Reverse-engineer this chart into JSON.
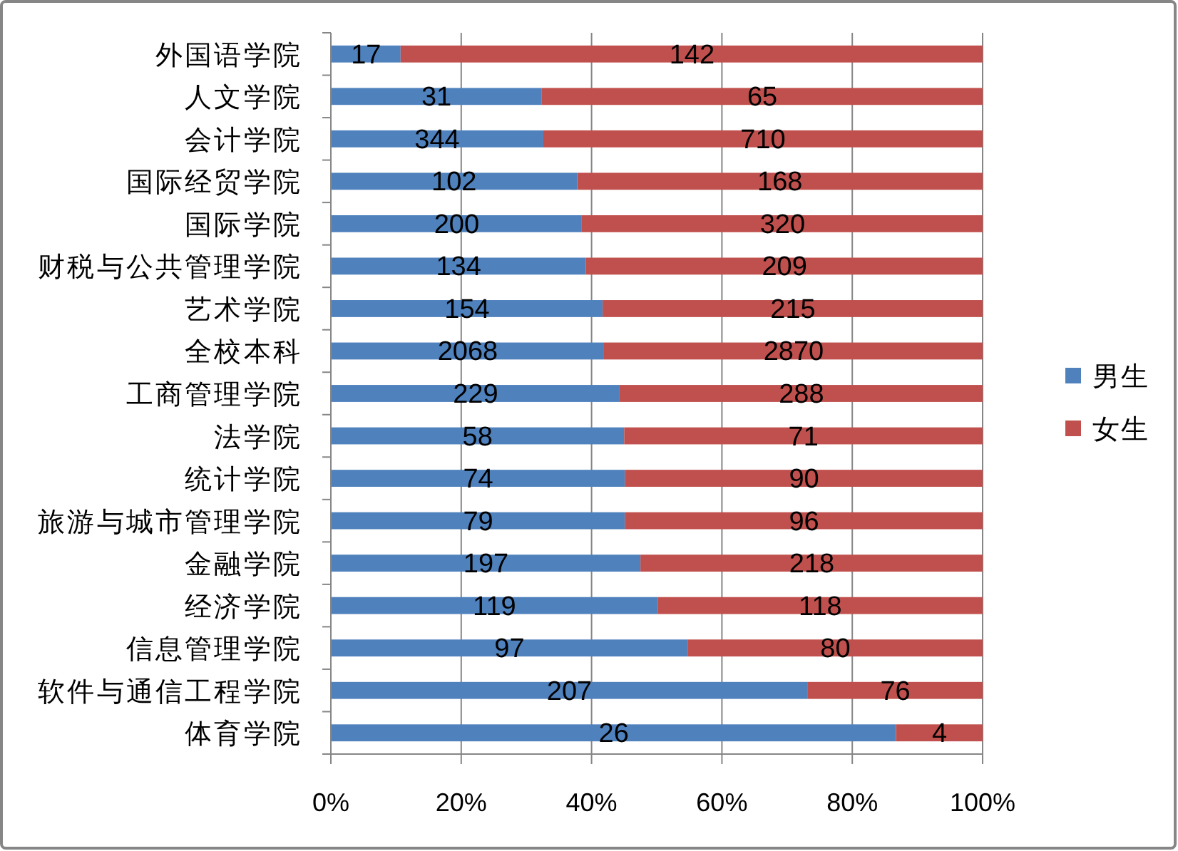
{
  "chart_data": {
    "type": "bar",
    "orientation": "horizontal",
    "stacked": true,
    "categories": [
      "外国语学院",
      "人文学院",
      "会计学院",
      "国际经贸学院",
      "国际学院",
      "财税与公共管理学院",
      "艺术学院",
      "全校本科",
      "工商管理学院",
      "法学院",
      "统计学院",
      "旅游与城市管理学院",
      "金融学院",
      "经济学院",
      "信息管理学院",
      "软件与通信工程学院",
      "体育学院"
    ],
    "series": [
      {
        "name": "男生",
        "color": "#4f81bd",
        "values": [
          10.7,
          32.3,
          32.6,
          37.8,
          38.5,
          39.1,
          41.7,
          41.9,
          44.3,
          45.0,
          45.1,
          45.1,
          47.5,
          50.2,
          54.8,
          73.1,
          86.7
        ]
      },
      {
        "name": "女生",
        "color": "#c0504d",
        "values": [
          89.3,
          67.7,
          67.4,
          62.2,
          61.5,
          60.9,
          58.3,
          58.1,
          55.7,
          55.0,
          54.9,
          54.9,
          52.5,
          49.8,
          45.2,
          26.9,
          13.3
        ]
      }
    ],
    "annotations": [
      {
        "text": "17",
        "x": 5.4,
        "y": "外国语学院"
      },
      {
        "text": "142",
        "x": 55.4,
        "y": "外国语学院"
      },
      {
        "text": "31",
        "x": 16.2,
        "y": "人文学院"
      },
      {
        "text": "65",
        "x": 66.2,
        "y": "人文学院"
      },
      {
        "text": "344",
        "x": 16.3,
        "y": "会计学院"
      },
      {
        "text": "710",
        "x": 66.3,
        "y": "会计学院"
      },
      {
        "text": "102",
        "x": 18.9,
        "y": "国际经贸学院"
      },
      {
        "text": "168",
        "x": 68.9,
        "y": "国际经贸学院"
      },
      {
        "text": "200",
        "x": 19.3,
        "y": "国际学院"
      },
      {
        "text": "320",
        "x": 69.3,
        "y": "国际学院"
      },
      {
        "text": "134",
        "x": 19.6,
        "y": "财税与公共管理学院"
      },
      {
        "text": "209",
        "x": 69.6,
        "y": "财税与公共管理学院"
      },
      {
        "text": "154",
        "x": 20.9,
        "y": "艺术学院"
      },
      {
        "text": "215",
        "x": 70.9,
        "y": "艺术学院"
      },
      {
        "text": "2068",
        "x": 21.0,
        "y": "全校本科"
      },
      {
        "text": "2870",
        "x": 71.0,
        "y": "全校本科"
      },
      {
        "text": "229",
        "x": 22.2,
        "y": "工商管理学院"
      },
      {
        "text": "288",
        "x": 72.2,
        "y": "工商管理学院"
      },
      {
        "text": "58",
        "x": 22.5,
        "y": "法学院"
      },
      {
        "text": "71",
        "x": 72.5,
        "y": "法学院"
      },
      {
        "text": "74",
        "x": 22.6,
        "y": "统计学院"
      },
      {
        "text": "90",
        "x": 72.6,
        "y": "统计学院"
      },
      {
        "text": "79",
        "x": 22.6,
        "y": "旅游与城市管理学院"
      },
      {
        "text": "96",
        "x": 72.6,
        "y": "旅游与城市管理学院"
      },
      {
        "text": "197",
        "x": 23.8,
        "y": "金融学院"
      },
      {
        "text": "218",
        "x": 73.8,
        "y": "金融学院"
      },
      {
        "text": "119",
        "x": 25.1,
        "y": "经济学院"
      },
      {
        "text": "118",
        "x": 75.1,
        "y": "经济学院"
      },
      {
        "text": "97",
        "x": 27.4,
        "y": "信息管理学院"
      },
      {
        "text": "80",
        "x": 77.4,
        "y": "信息管理学院"
      },
      {
        "text": "207",
        "x": 36.6,
        "y": "软件与通信工程学院"
      },
      {
        "text": "76",
        "x": 86.6,
        "y": "软件与通信工程学院"
      },
      {
        "text": "26",
        "x": 43.4,
        "y": "体育学院"
      },
      {
        "text": "4",
        "x": 93.4,
        "y": "体育学院"
      }
    ],
    "xlim": [
      0,
      100
    ],
    "xticks": [
      {
        "value": 0,
        "label": "0%"
      },
      {
        "value": 20,
        "label": "20%"
      },
      {
        "value": 40,
        "label": "40%"
      },
      {
        "value": 60,
        "label": "60%"
      },
      {
        "value": 80,
        "label": "80%"
      },
      {
        "value": 100,
        "label": "100%"
      }
    ],
    "grid": "x",
    "legend": "right"
  }
}
